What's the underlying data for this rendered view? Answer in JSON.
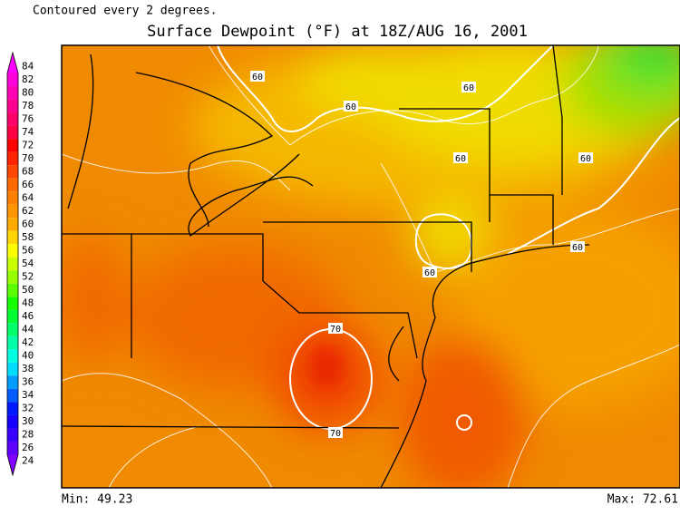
{
  "header": {
    "note": "Contoured every 2 degrees.",
    "title": "Surface Dewpoint (°F) at 18Z/AUG 16, 2001"
  },
  "colorbar": {
    "labels": [
      84,
      82,
      80,
      78,
      76,
      74,
      72,
      70,
      68,
      66,
      64,
      62,
      60,
      58,
      56,
      54,
      52,
      50,
      48,
      46,
      44,
      42,
      40,
      38,
      36,
      34,
      32,
      30,
      28,
      26,
      24
    ]
  },
  "contour_labels": [
    "60",
    "60",
    "60",
    "60",
    "60",
    "60",
    "60",
    "70",
    "70"
  ],
  "footer": {
    "min": "Min: 49.23",
    "max": "Max: 72.61"
  }
}
